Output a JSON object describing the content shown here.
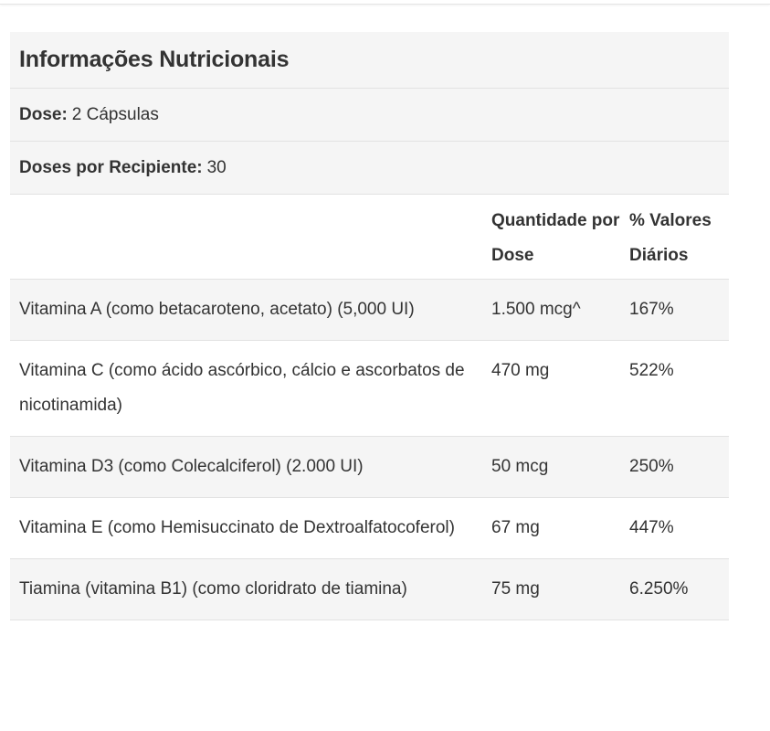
{
  "title": "Informações Nutricionais",
  "dose": {
    "label": "Dose:",
    "value": "2 Cápsulas"
  },
  "doses_per_container": {
    "label": "Doses por Recipiente:",
    "value": "30"
  },
  "columns": {
    "nutrient": "",
    "amount": "Quantidade por Dose",
    "daily_value": "% Valores Diários"
  },
  "rows": [
    {
      "name": "Vitamina A (como betacaroteno, acetato) (5,000 UI)",
      "amount": "1.500 mcg^",
      "dv": "167%"
    },
    {
      "name": "Vitamina C (como ácido ascórbico, cálcio e ascorbatos de nicotinamida)",
      "amount": "470 mg",
      "dv": "522%"
    },
    {
      "name": "Vitamina D3 (como Colecalciferol) (2.000 UI)",
      "amount": "50 mcg",
      "dv": "250%"
    },
    {
      "name": "Vitamina E (como Hemisuccinato de Dextroalfatocoferol)",
      "amount": "67 mg",
      "dv": "447%"
    },
    {
      "name": "Tiamina (vitamina B1) (como cloridrato de tiamina)",
      "amount": "75 mg",
      "dv": "6.250%"
    }
  ]
}
